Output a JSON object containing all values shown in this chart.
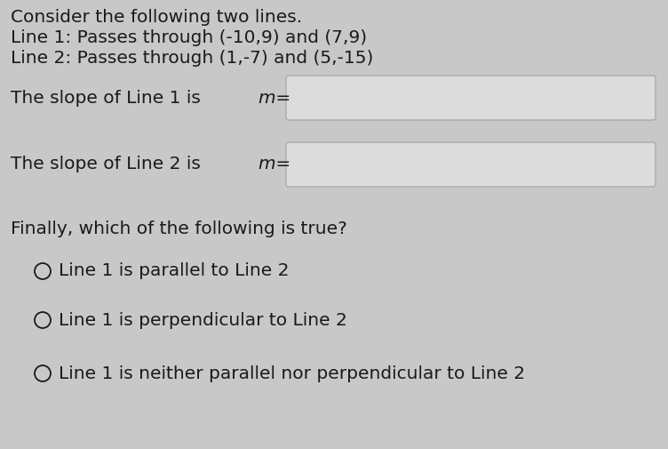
{
  "background_color": "#c8c8c8",
  "box_bg_color": "#e0e0e0",
  "text_color": "#1a1a1a",
  "title_lines": [
    "Consider the following two lines.",
    "Line 1: Passes through (-10,9) and (7,9)",
    "Line 2: Passes through (1,-7) and (5,-15)"
  ],
  "slope_label_1": "The slope of Line 1 is ",
  "slope_label_2": "The slope of Line 2 is ",
  "finally_text": "Finally, which of the following is true?",
  "options": [
    "Line 1 is parallel to Line 2",
    "Line 1 is perpendicular to Line 2",
    "Line 1 is neither parallel nor perpendicular to Line 2"
  ],
  "box_fill": "#dcdcdc",
  "box_edge": "#aaaaaa",
  "font_size_main": 14.5,
  "font_size_options": 14.5,
  "fig_width": 7.52,
  "fig_height": 5.05,
  "dpi": 100
}
